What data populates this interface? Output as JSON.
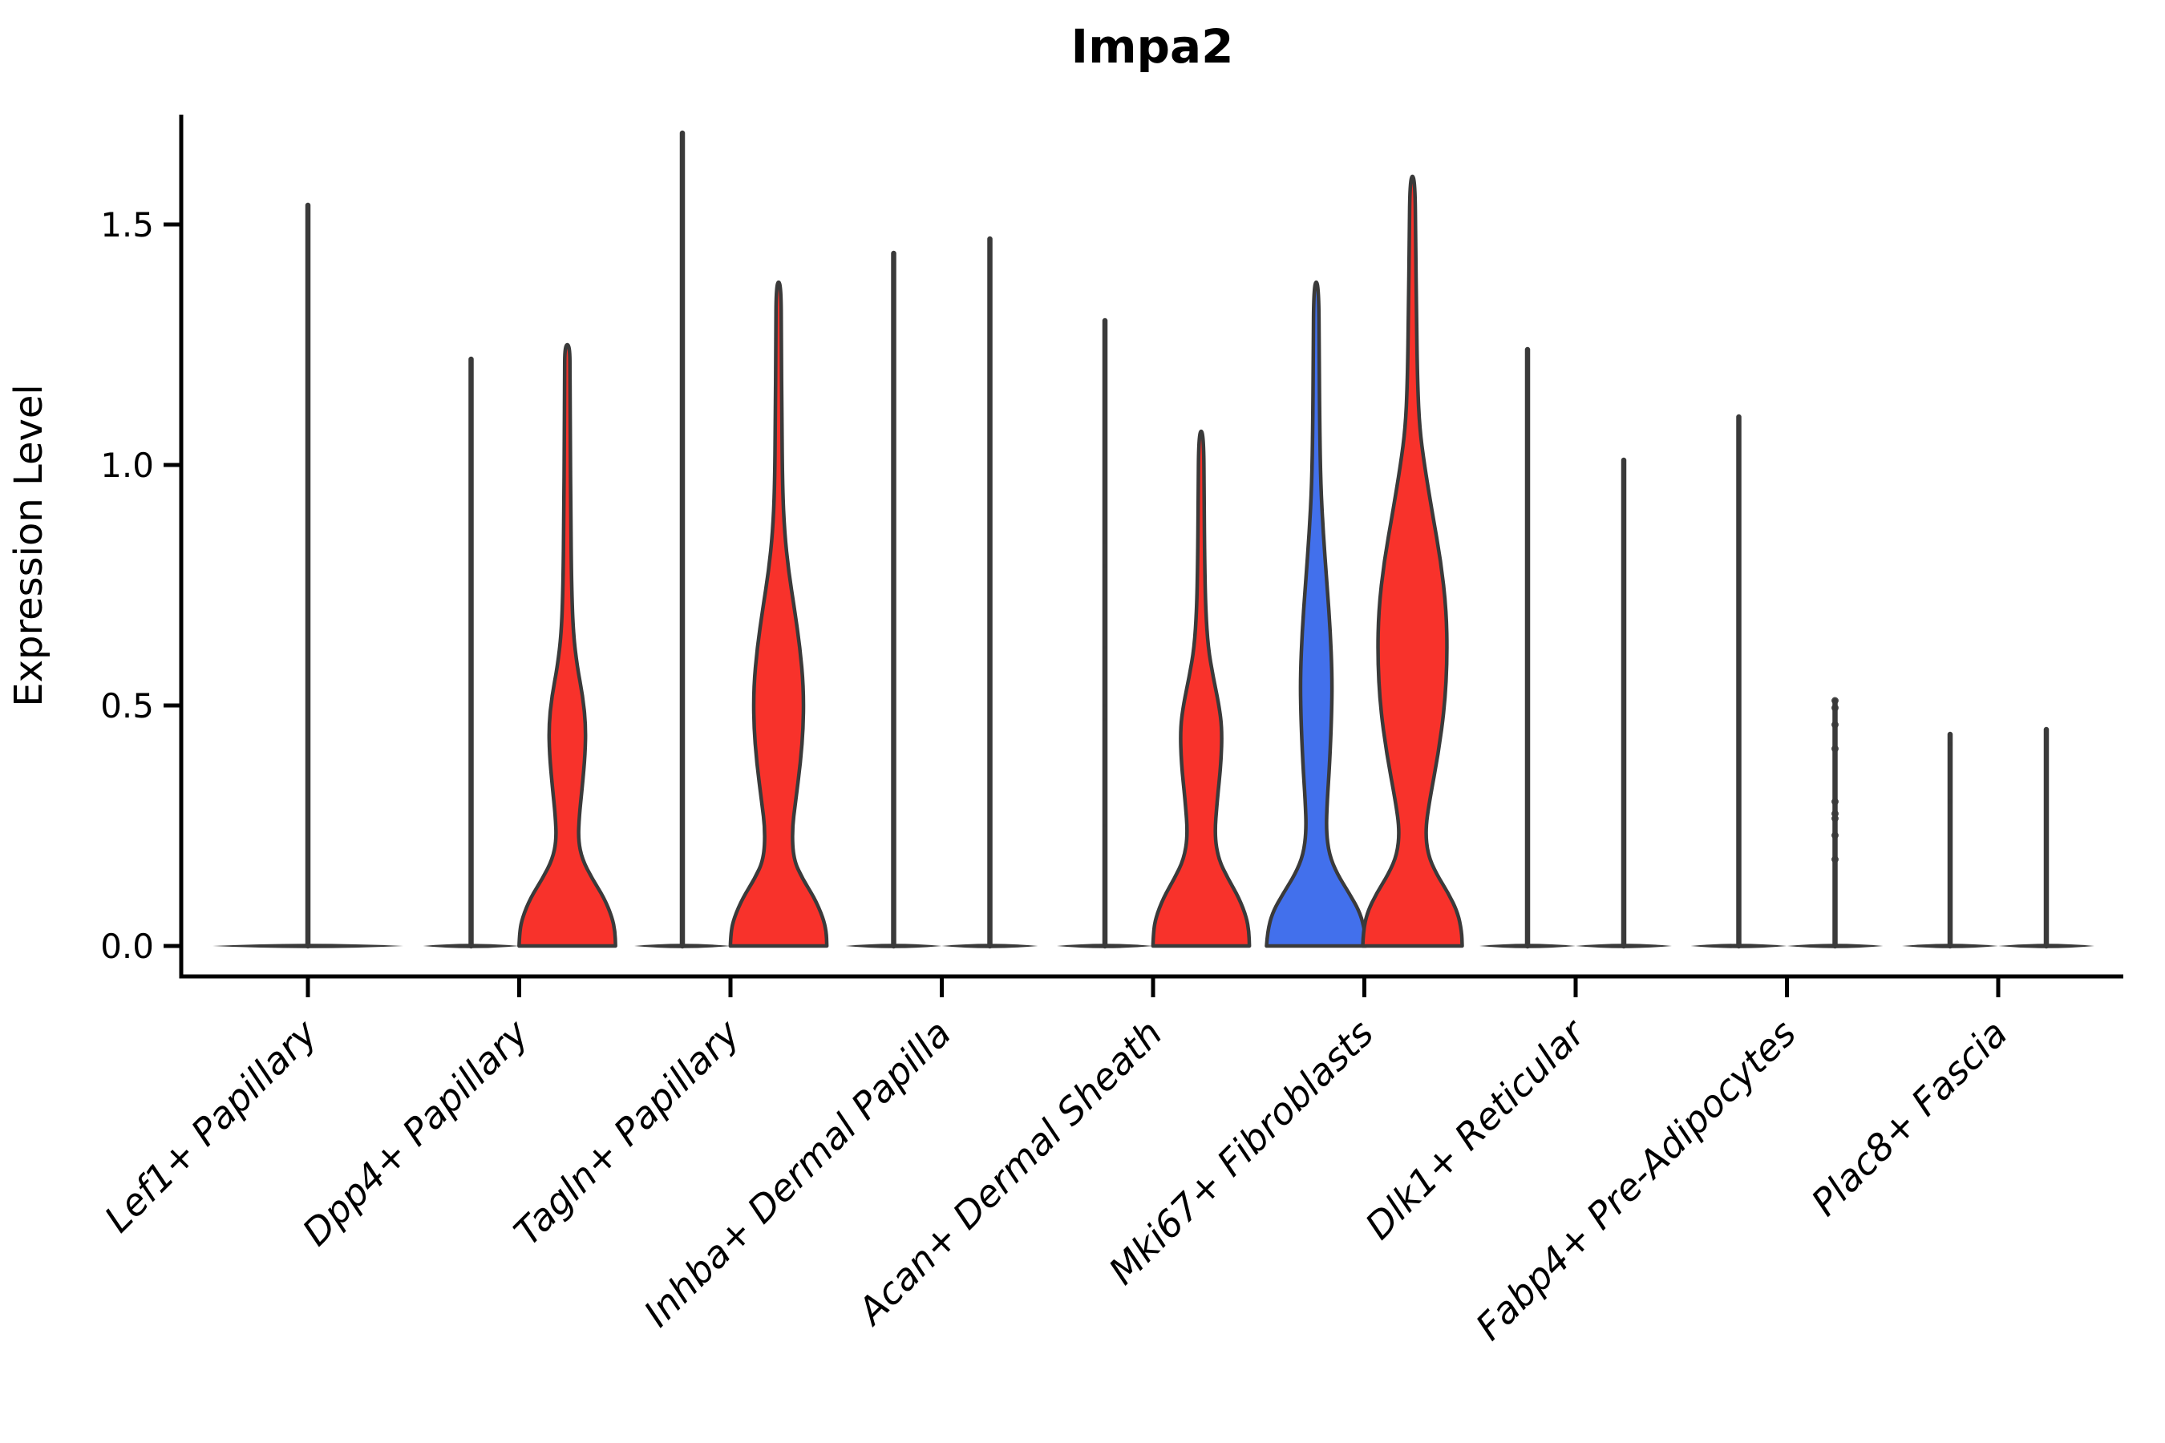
{
  "figure": {
    "title": "Impa2",
    "y_axis_label": "Expression Level"
  },
  "colors": {
    "red": "#F8322B",
    "blue": "#4270EC",
    "outline": "#3A3A3A",
    "axis": "#000000",
    "text": "#000000",
    "background": "#FFFFFF"
  },
  "chart_data": {
    "type": "violin",
    "title": "Impa2",
    "xlabel": "",
    "ylabel": "Expression Level",
    "yticks": [
      "0.0",
      "0.5",
      "1.0",
      "1.5"
    ],
    "ytick_values": [
      0.0,
      0.5,
      1.0,
      1.5
    ],
    "ylim": [
      0,
      1.73
    ],
    "grid": false,
    "legend": "none",
    "categories": [
      "Lef1+ Papillary",
      "Dpp4+ Papillary",
      "Tagln+ Papillary",
      "Inhba+ Dermal Papilla",
      "Acan+ Dermal Sheath",
      "Mki67+ Fibroblasts",
      "Dlk1+ Reticular",
      "Fabp4+ Pre-Adipocytes",
      "Plac8+ Fascia"
    ],
    "groups": [
      {
        "category": "Lef1+ Papillary",
        "violins": [
          {
            "position": "center",
            "style": "spike",
            "fill": null,
            "max": 1.54,
            "base_halfwidth": 119
          }
        ]
      },
      {
        "category": "Dpp4+ Papillary",
        "violins": [
          {
            "position": "left",
            "style": "spike",
            "fill": null,
            "max": 1.22,
            "base_halfwidth": 60
          },
          {
            "position": "right",
            "style": "violin",
            "fill": "red",
            "max": 1.25,
            "base_halfwidth": 60,
            "profile": [
              [
                0,
                0.97
              ],
              [
                0.03,
                0.96
              ],
              [
                0.06,
                0.9
              ],
              [
                0.1,
                0.74
              ],
              [
                0.14,
                0.5
              ],
              [
                0.18,
                0.3
              ],
              [
                0.22,
                0.22
              ],
              [
                0.27,
                0.24
              ],
              [
                0.33,
                0.3
              ],
              [
                0.4,
                0.36
              ],
              [
                0.46,
                0.37
              ],
              [
                0.52,
                0.31
              ],
              [
                0.58,
                0.2
              ],
              [
                0.65,
                0.12
              ],
              [
                0.75,
                0.085
              ],
              [
                0.9,
                0.07
              ],
              [
                1.05,
                0.06
              ],
              [
                1.18,
                0.055
              ],
              [
                1.25,
                0.05
              ]
            ]
          }
        ]
      },
      {
        "category": "Tagln+ Papillary",
        "violins": [
          {
            "position": "left",
            "style": "spike",
            "fill": null,
            "max": 1.69,
            "base_halfwidth": 60
          },
          {
            "position": "right",
            "style": "violin",
            "fill": "red",
            "max": 1.38,
            "base_halfwidth": 60,
            "profile": [
              [
                0,
                0.97
              ],
              [
                0.03,
                0.96
              ],
              [
                0.06,
                0.89
              ],
              [
                0.1,
                0.72
              ],
              [
                0.14,
                0.48
              ],
              [
                0.18,
                0.3
              ],
              [
                0.24,
                0.27
              ],
              [
                0.3,
                0.34
              ],
              [
                0.38,
                0.44
              ],
              [
                0.46,
                0.5
              ],
              [
                0.54,
                0.5
              ],
              [
                0.62,
                0.43
              ],
              [
                0.7,
                0.32
              ],
              [
                0.78,
                0.2
              ],
              [
                0.86,
                0.12
              ],
              [
                0.95,
                0.08
              ],
              [
                1.1,
                0.065
              ],
              [
                1.25,
                0.055
              ],
              [
                1.38,
                0.05
              ]
            ]
          }
        ]
      },
      {
        "category": "Inhba+ Dermal Papilla",
        "violins": [
          {
            "position": "left",
            "style": "spike",
            "fill": null,
            "max": 1.44,
            "base_halfwidth": 60
          },
          {
            "position": "right",
            "style": "spike",
            "fill": null,
            "max": 1.47,
            "base_halfwidth": 60
          }
        ]
      },
      {
        "category": "Acan+ Dermal Sheath",
        "violins": [
          {
            "position": "left",
            "style": "spike",
            "fill": null,
            "max": 1.3,
            "base_halfwidth": 60,
            "points": [
              0.84,
              0.79,
              0.62,
              0.5,
              0.47,
              0.25
            ],
            "point_radius": 2.5
          },
          {
            "position": "right",
            "style": "violin",
            "fill": "red",
            "max": 1.07,
            "base_halfwidth": 60,
            "profile": [
              [
                0,
                0.97
              ],
              [
                0.03,
                0.96
              ],
              [
                0.06,
                0.91
              ],
              [
                0.1,
                0.76
              ],
              [
                0.14,
                0.54
              ],
              [
                0.18,
                0.35
              ],
              [
                0.23,
                0.27
              ],
              [
                0.3,
                0.32
              ],
              [
                0.38,
                0.4
              ],
              [
                0.45,
                0.42
              ],
              [
                0.5,
                0.36
              ],
              [
                0.56,
                0.24
              ],
              [
                0.62,
                0.14
              ],
              [
                0.7,
                0.09
              ],
              [
                0.8,
                0.07
              ],
              [
                0.92,
                0.06
              ],
              [
                1.07,
                0.05
              ]
            ]
          }
        ]
      },
      {
        "category": "Mki67+ Fibroblasts",
        "violins": [
          {
            "position": "left",
            "style": "violin",
            "fill": "blue",
            "max": 1.38,
            "base_halfwidth": 60,
            "profile": [
              [
                0,
                1.0
              ],
              [
                0.03,
                0.98
              ],
              [
                0.07,
                0.88
              ],
              [
                0.11,
                0.66
              ],
              [
                0.15,
                0.42
              ],
              [
                0.19,
                0.26
              ],
              [
                0.24,
                0.2
              ],
              [
                0.3,
                0.22
              ],
              [
                0.38,
                0.27
              ],
              [
                0.48,
                0.31
              ],
              [
                0.56,
                0.32
              ],
              [
                0.66,
                0.28
              ],
              [
                0.76,
                0.21
              ],
              [
                0.86,
                0.14
              ],
              [
                0.96,
                0.09
              ],
              [
                1.08,
                0.07
              ],
              [
                1.22,
                0.06
              ],
              [
                1.38,
                0.05
              ]
            ]
          },
          {
            "position": "right",
            "style": "violin",
            "fill": "red",
            "max": 1.6,
            "base_halfwidth": 60,
            "profile": [
              [
                0,
                1.0
              ],
              [
                0.03,
                0.99
              ],
              [
                0.07,
                0.91
              ],
              [
                0.11,
                0.72
              ],
              [
                0.15,
                0.48
              ],
              [
                0.19,
                0.31
              ],
              [
                0.24,
                0.26
              ],
              [
                0.3,
                0.34
              ],
              [
                0.4,
                0.52
              ],
              [
                0.5,
                0.65
              ],
              [
                0.6,
                0.7
              ],
              [
                0.7,
                0.68
              ],
              [
                0.8,
                0.57
              ],
              [
                0.9,
                0.4
              ],
              [
                1.0,
                0.24
              ],
              [
                1.08,
                0.14
              ],
              [
                1.18,
                0.1
              ],
              [
                1.32,
                0.08
              ],
              [
                1.46,
                0.065
              ],
              [
                1.6,
                0.05
              ]
            ]
          }
        ]
      },
      {
        "category": "Dlk1+ Reticular",
        "violins": [
          {
            "position": "left",
            "style": "spike",
            "fill": null,
            "max": 1.24,
            "base_halfwidth": 60
          },
          {
            "position": "right",
            "style": "spike",
            "fill": null,
            "max": 1.01,
            "base_halfwidth": 60
          }
        ]
      },
      {
        "category": "Fabp4+ Pre-Adipocytes",
        "violins": [
          {
            "position": "left",
            "style": "spike",
            "fill": null,
            "max": 1.1,
            "base_halfwidth": 60
          },
          {
            "position": "right",
            "style": "spike",
            "fill": null,
            "max": 0.51,
            "base_halfwidth": 60,
            "points": [
              0.51,
              0.495,
              0.46,
              0.41,
              0.3,
              0.275,
              0.265,
              0.23,
              0.18
            ],
            "point_radius": 4.5
          }
        ]
      },
      {
        "category": "Plac8+ Fascia",
        "violins": [
          {
            "position": "left",
            "style": "spike",
            "fill": null,
            "max": 0.44,
            "base_halfwidth": 60,
            "points": [
              0.42,
              0.3
            ],
            "point_radius": 3.0
          },
          {
            "position": "right",
            "style": "spike",
            "fill": null,
            "max": 0.45,
            "base_halfwidth": 60
          }
        ]
      }
    ]
  }
}
